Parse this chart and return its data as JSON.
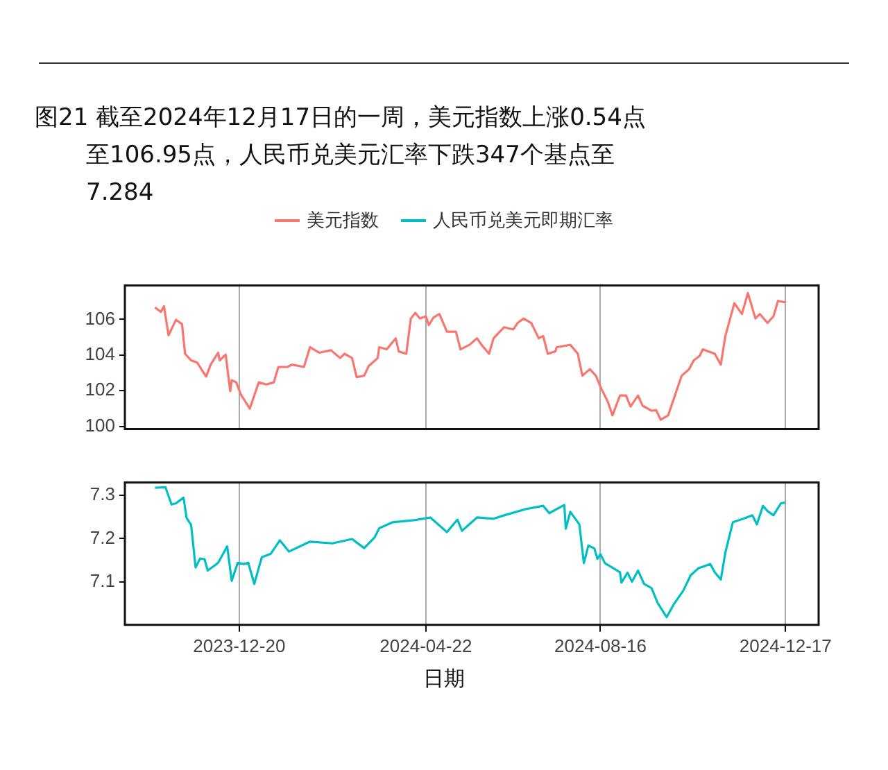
{
  "chart_data": [
    {
      "type": "line",
      "title": "图21  截至2024年12月17日的一周，美元指数上涨0.54点至106.95点，人民币兑美元汇率下跌347个基点至7.284",
      "legend": "top",
      "grid": "x",
      "tick_labels": "y",
      "xlim": [
        "2023-10-05",
        "2025-01-08"
      ],
      "xticks": [
        "2023-12-20",
        "2024-04-22",
        "2024-08-16",
        "2024-12-17"
      ],
      "ylim": [
        99.85,
        107.9
      ],
      "yticks": [
        100,
        102,
        104,
        106
      ],
      "series": [
        {
          "name": "美元指数",
          "color": "#f8766d",
          "x": [
            "2023-10-25",
            "2023-10-29",
            "2023-10-31",
            "2023-11-03",
            "2023-11-08",
            "2023-11-12",
            "2023-11-14",
            "2023-11-18",
            "2023-11-22",
            "2023-11-28",
            "2023-12-01",
            "2023-12-06",
            "2023-12-07",
            "2023-12-11",
            "2023-12-14",
            "2023-12-15",
            "2023-12-18",
            "2023-12-21",
            "2023-12-27",
            "2024-01-02",
            "2024-01-07",
            "2024-01-12",
            "2024-01-15",
            "2024-01-21",
            "2024-01-24",
            "2024-02-01",
            "2024-02-05",
            "2024-02-11",
            "2024-02-19",
            "2024-02-25",
            "2024-02-28",
            "2024-03-04",
            "2024-03-07",
            "2024-03-12",
            "2024-03-15",
            "2024-03-21",
            "2024-03-22",
            "2024-03-27",
            "2024-04-02",
            "2024-04-04",
            "2024-04-09",
            "2024-04-12",
            "2024-04-15",
            "2024-04-18",
            "2024-04-22",
            "2024-04-24",
            "2024-04-27",
            "2024-05-01",
            "2024-05-06",
            "2024-05-12",
            "2024-05-15",
            "2024-05-21",
            "2024-05-26",
            "2024-05-29",
            "2024-06-03",
            "2024-06-06",
            "2024-06-13",
            "2024-06-19",
            "2024-06-22",
            "2024-06-26",
            "2024-07-01",
            "2024-07-06",
            "2024-07-09",
            "2024-07-12",
            "2024-07-17",
            "2024-07-18",
            "2024-07-27",
            "2024-08-01",
            "2024-08-04",
            "2024-08-09",
            "2024-08-13",
            "2024-08-16",
            "2024-08-21",
            "2024-08-24",
            "2024-08-29",
            "2024-09-02",
            "2024-09-05",
            "2024-09-10",
            "2024-09-13",
            "2024-09-19",
            "2024-09-22",
            "2024-09-25",
            "2024-09-30",
            "2024-10-09",
            "2024-10-14",
            "2024-10-17",
            "2024-10-21",
            "2024-10-23",
            "2024-10-31",
            "2024-11-04",
            "2024-11-07",
            "2024-11-13",
            "2024-11-18",
            "2024-11-22",
            "2024-11-27",
            "2024-11-30",
            "2024-12-05",
            "2024-12-09",
            "2024-12-12",
            "2024-12-17"
          ],
          "values": [
            106.67,
            106.42,
            106.74,
            105.11,
            105.98,
            105.73,
            104.07,
            103.7,
            103.58,
            102.79,
            103.46,
            104.13,
            103.7,
            104.02,
            101.98,
            102.59,
            102.47,
            101.8,
            100.99,
            102.47,
            102.35,
            102.47,
            103.33,
            103.33,
            103.46,
            103.33,
            104.44,
            104.13,
            104.27,
            103.83,
            104.07,
            103.83,
            102.76,
            102.84,
            103.38,
            103.83,
            104.44,
            104.32,
            104.94,
            104.2,
            104.07,
            106.05,
            106.37,
            106.05,
            106.17,
            105.68,
            106.1,
            106.3,
            105.31,
            105.31,
            104.32,
            104.57,
            104.94,
            104.57,
            104.07,
            104.94,
            105.56,
            105.43,
            105.8,
            106.05,
            105.8,
            104.94,
            105.06,
            104.07,
            104.2,
            104.44,
            104.57,
            104.07,
            102.84,
            103.21,
            102.84,
            102.22,
            101.36,
            100.61,
            101.73,
            101.73,
            101.11,
            101.73,
            101.16,
            100.87,
            100.91,
            100.37,
            100.61,
            102.84,
            103.21,
            103.7,
            103.95,
            104.32,
            104.07,
            103.46,
            105.06,
            106.91,
            106.3,
            107.48,
            106.05,
            106.3,
            105.8,
            106.17,
            107.04,
            106.95
          ]
        }
      ]
    },
    {
      "type": "line",
      "xlabel": "日期",
      "legend": "top",
      "grid": "x",
      "xlim": [
        "2023-10-05",
        "2025-01-08"
      ],
      "xticks": [
        "2023-12-20",
        "2024-04-22",
        "2024-08-16",
        "2024-12-17"
      ],
      "ylim": [
        7.0,
        7.33
      ],
      "yticks": [
        7.1,
        7.2,
        7.3
      ],
      "series": [
        {
          "name": "人民币兑美元即期汇率",
          "color": "#00bfc4",
          "x": [
            "2023-10-25",
            "2023-11-01",
            "2023-11-05",
            "2023-11-08",
            "2023-11-13",
            "2023-11-15",
            "2023-11-18",
            "2023-11-21",
            "2023-11-24",
            "2023-11-27",
            "2023-11-29",
            "2023-12-03",
            "2023-12-06",
            "2023-12-12",
            "2023-12-15",
            "2023-12-19",
            "2023-12-23",
            "2023-12-26",
            "2023-12-30",
            "2024-01-04",
            "2024-01-10",
            "2024-01-16",
            "2024-01-22",
            "2024-02-05",
            "2024-02-20",
            "2024-03-04",
            "2024-03-12",
            "2024-03-19",
            "2024-03-22",
            "2024-03-31",
            "2024-04-15",
            "2024-04-25",
            "2024-05-06",
            "2024-05-13",
            "2024-05-16",
            "2024-05-26",
            "2024-06-06",
            "2024-06-13",
            "2024-06-28",
            "2024-07-09",
            "2024-07-13",
            "2024-07-23",
            "2024-07-24",
            "2024-07-27",
            "2024-08-02",
            "2024-08-05",
            "2024-08-08",
            "2024-08-12",
            "2024-08-14",
            "2024-08-16",
            "2024-08-19",
            "2024-08-29",
            "2024-08-30",
            "2024-09-03",
            "2024-09-06",
            "2024-09-10",
            "2024-09-14",
            "2024-09-19",
            "2024-09-23",
            "2024-09-29",
            "2024-10-04",
            "2024-10-10",
            "2024-10-15",
            "2024-10-20",
            "2024-10-28",
            "2024-10-31",
            "2024-11-04",
            "2024-11-07",
            "2024-11-12",
            "2024-11-19",
            "2024-11-25",
            "2024-11-28",
            "2024-12-02",
            "2024-12-05",
            "2024-12-09",
            "2024-12-14",
            "2024-12-17"
          ],
          "values": [
            7.318,
            7.319,
            7.279,
            7.282,
            7.295,
            7.248,
            7.232,
            7.133,
            7.154,
            7.152,
            7.126,
            7.136,
            7.144,
            7.182,
            7.102,
            7.144,
            7.141,
            7.144,
            7.095,
            7.157,
            7.165,
            7.196,
            7.17,
            7.193,
            7.189,
            7.199,
            7.178,
            7.203,
            7.224,
            7.238,
            7.243,
            7.249,
            7.215,
            7.244,
            7.218,
            7.249,
            7.246,
            7.254,
            7.269,
            7.276,
            7.259,
            7.278,
            7.223,
            7.262,
            7.233,
            7.143,
            7.184,
            7.177,
            7.153,
            7.164,
            7.143,
            7.122,
            7.098,
            7.121,
            7.1,
            7.126,
            7.095,
            7.085,
            7.051,
            7.018,
            7.049,
            7.079,
            7.115,
            7.131,
            7.141,
            7.122,
            7.105,
            7.167,
            7.238,
            7.246,
            7.254,
            7.233,
            7.276,
            7.264,
            7.254,
            7.282,
            7.284
          ]
        }
      ]
    }
  ]
}
